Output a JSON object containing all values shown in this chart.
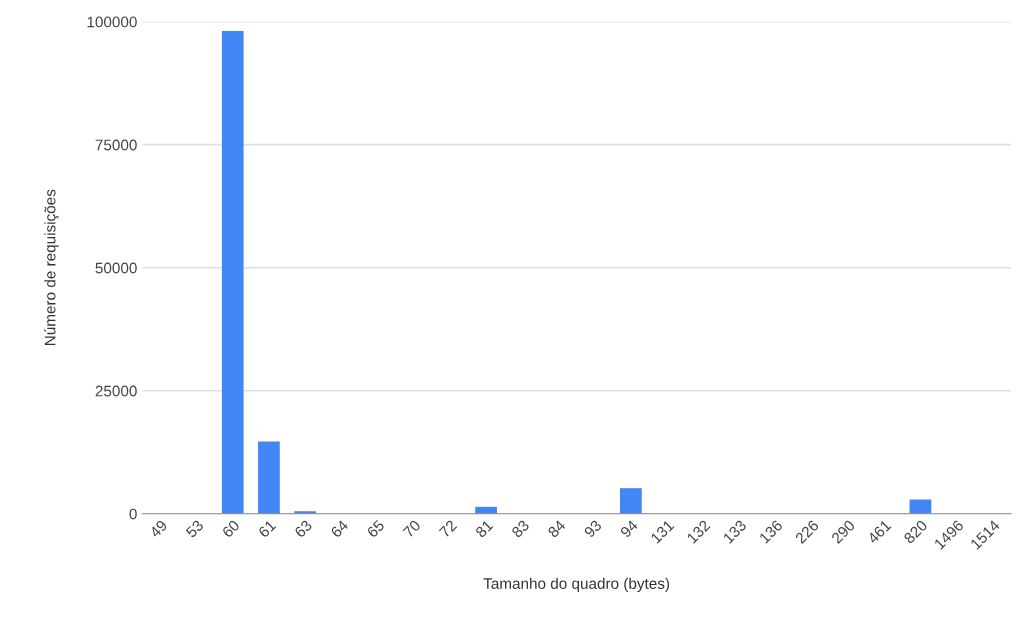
{
  "chart_data": {
    "type": "bar",
    "xlabel": "Tamanho do quadro (bytes)",
    "ylabel": "Número de requisições",
    "categories": [
      "49",
      "53",
      "60",
      "61",
      "63",
      "64",
      "65",
      "70",
      "72",
      "81",
      "83",
      "84",
      "93",
      "94",
      "131",
      "132",
      "133",
      "136",
      "226",
      "290",
      "461",
      "820",
      "1496",
      "1514"
    ],
    "values": [
      0,
      0,
      98100,
      14700,
      500,
      0,
      0,
      0,
      0,
      1400,
      0,
      0,
      0,
      5200,
      0,
      0,
      0,
      0,
      0,
      0,
      0,
      2900,
      0,
      0
    ],
    "color": "#4285f4",
    "ylim": [
      0,
      100000
    ],
    "yticks": [
      0,
      25000,
      50000,
      75000,
      100000
    ],
    "grid": "y"
  }
}
